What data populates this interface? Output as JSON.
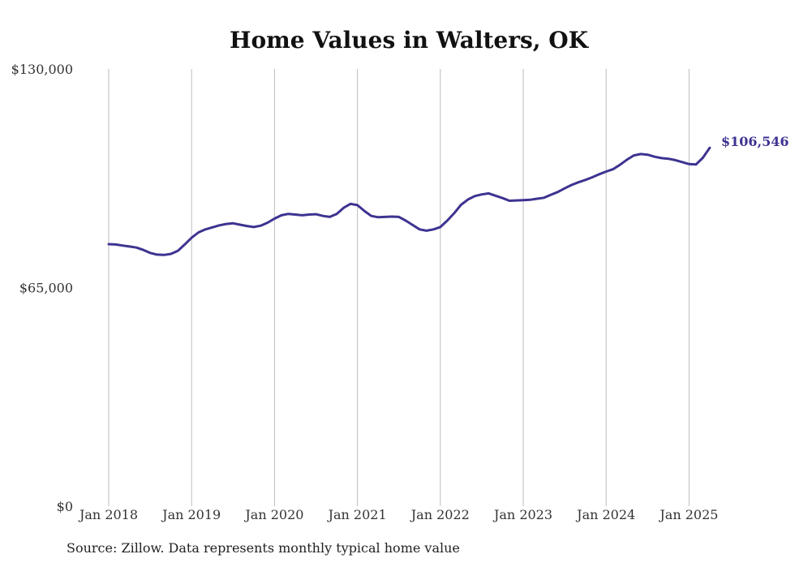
{
  "chart_data": {
    "type": "line",
    "title": "Home Values in Walters, OK",
    "xlabel": "",
    "ylabel": "",
    "y_tick_labels": [
      "$0",
      "$65,000",
      "$130,000"
    ],
    "y_ticks": [
      0,
      65000,
      130000
    ],
    "ylim": [
      0,
      130000
    ],
    "x_tick_labels": [
      "Jan 2018",
      "Jan 2019",
      "Jan 2020",
      "Jan 2021",
      "Jan 2022",
      "Jan 2023",
      "Jan 2024",
      "Jan 2025"
    ],
    "x_ticks": [
      "2018-01",
      "2019-01",
      "2020-01",
      "2021-01",
      "2022-01",
      "2023-01",
      "2024-01",
      "2025-01"
    ],
    "xlim": [
      "2018-01",
      "2025-04"
    ],
    "grid": "vertical",
    "line_color": "#3d3391",
    "end_label": "$106,546",
    "series": [
      {
        "x": [
          "2018-01",
          "2018-02",
          "2018-03",
          "2018-04",
          "2018-05",
          "2018-06",
          "2018-07",
          "2018-08",
          "2018-09",
          "2018-10",
          "2018-11",
          "2018-12",
          "2019-01",
          "2019-02",
          "2019-03",
          "2019-04",
          "2019-05",
          "2019-06",
          "2019-07",
          "2019-08",
          "2019-09",
          "2019-10",
          "2019-11",
          "2019-12",
          "2020-01",
          "2020-02",
          "2020-03",
          "2020-04",
          "2020-05",
          "2020-06",
          "2020-07",
          "2020-08",
          "2020-09",
          "2020-10",
          "2020-11",
          "2020-12",
          "2021-01",
          "2021-02",
          "2021-03",
          "2021-04",
          "2021-05",
          "2021-06",
          "2021-07",
          "2021-08",
          "2021-09",
          "2021-10",
          "2021-11",
          "2021-12",
          "2022-01",
          "2022-02",
          "2022-03",
          "2022-04",
          "2022-05",
          "2022-06",
          "2022-07",
          "2022-08",
          "2022-09",
          "2022-10",
          "2022-11",
          "2022-12",
          "2023-01",
          "2023-02",
          "2023-03",
          "2023-04",
          "2023-05",
          "2023-06",
          "2023-07",
          "2023-08",
          "2023-09",
          "2023-10",
          "2023-11",
          "2023-12",
          "2024-01",
          "2024-02",
          "2024-03",
          "2024-04",
          "2024-05",
          "2024-06",
          "2024-07",
          "2024-08",
          "2024-09",
          "2024-10",
          "2024-11",
          "2024-12",
          "2025-01",
          "2025-02",
          "2025-03",
          "2025-04"
        ],
        "values": [
          77900,
          77800,
          77500,
          77200,
          76900,
          76200,
          75300,
          74800,
          74700,
          75000,
          75900,
          77800,
          79800,
          81400,
          82300,
          82900,
          83500,
          83900,
          84100,
          83700,
          83300,
          83000,
          83400,
          84300,
          85500,
          86500,
          86900,
          86700,
          86500,
          86700,
          86800,
          86300,
          86000,
          86900,
          88700,
          89900,
          89500,
          87800,
          86300,
          85900,
          86000,
          86100,
          86000,
          84900,
          83600,
          82300,
          81900,
          82300,
          83000,
          84900,
          87100,
          89600,
          91200,
          92200,
          92700,
          93000,
          92300,
          91600,
          90800,
          90900,
          91000,
          91100,
          91400,
          91700,
          92600,
          93400,
          94500,
          95500,
          96300,
          97000,
          97800,
          98700,
          99500,
          100200,
          101500,
          103000,
          104300,
          104700,
          104500,
          103900,
          103500,
          103300,
          102900,
          102300,
          101700,
          101600,
          103600,
          106546
        ]
      }
    ]
  },
  "source_text": "Source: Zillow. Data represents monthly typical home value"
}
